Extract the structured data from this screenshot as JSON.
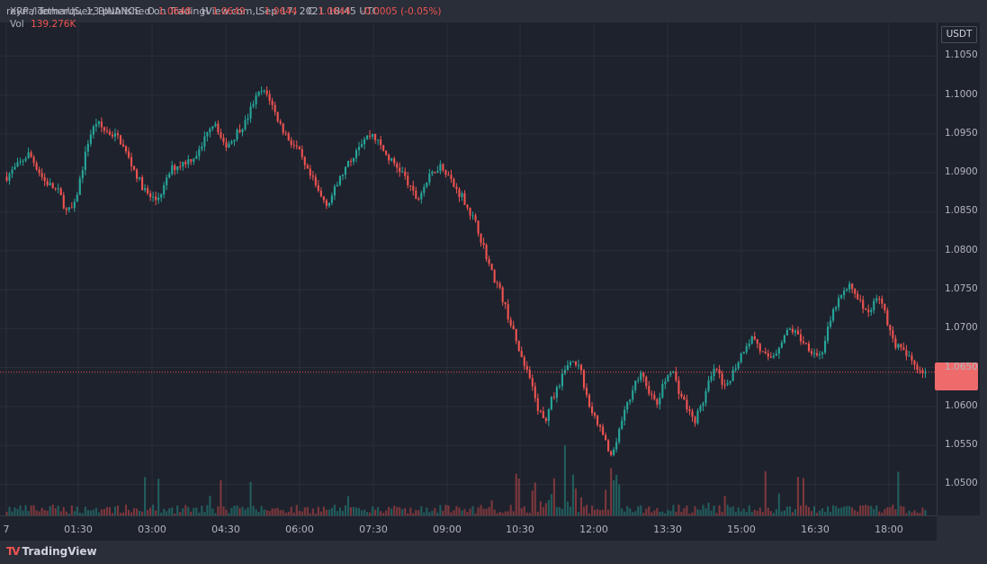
{
  "header": {
    "publish_line": "reynaldomarquez3 published on TradingView.com, Sep 17, 2021 18:45 UTC"
  },
  "legend": {
    "symbol": "XRP / TetherUS, 1, BINANCE",
    "o_label": "O",
    "o_value": "1.0648",
    "h_label": "H",
    "h_value": "1.0649",
    "l_label": "L",
    "l_value": "1.0644",
    "c_label": "C",
    "c_value": "1.0644",
    "change": "-0.0005 (-0.05%)",
    "vol_label": "Vol",
    "vol_value": "139.276K"
  },
  "currency": "USDT",
  "footer": {
    "brand": "TradingView"
  },
  "colors": {
    "up": "#26a69a",
    "down": "#ef5350",
    "background": "#1e222d",
    "grid": "#2a2e39"
  },
  "chart_data": {
    "type": "candlestick",
    "ylim": [
      1.046,
      1.1085
    ],
    "price_ticks": [
      "1.1050",
      "1.1000",
      "1.0950",
      "1.0900",
      "1.0850",
      "1.0800",
      "1.0750",
      "1.0700",
      "1.0650",
      "1.0600",
      "1.0550",
      "1.0500"
    ],
    "time_ticks": [
      "7",
      "01:30",
      "03:00",
      "04:30",
      "06:00",
      "07:30",
      "09:00",
      "10:30",
      "12:00",
      "13:30",
      "15:00",
      "16:30",
      "18:00"
    ],
    "last_price": 1.0644,
    "path": [
      [
        0,
        1.0895
      ],
      [
        1,
        1.0905
      ],
      [
        3,
        1.0925
      ],
      [
        5,
        1.089
      ],
      [
        7,
        1.0875
      ],
      [
        8,
        1.085
      ],
      [
        9,
        1.0855
      ],
      [
        10,
        1.09
      ],
      [
        11,
        1.0945
      ],
      [
        12,
        1.0965
      ],
      [
        13,
        1.0955
      ],
      [
        14,
        1.095
      ],
      [
        15,
        1.0945
      ],
      [
        16,
        1.0925
      ],
      [
        17,
        1.0905
      ],
      [
        18,
        1.0885
      ],
      [
        19,
        1.087
      ],
      [
        20,
        1.0865
      ],
      [
        21,
        1.088
      ],
      [
        22,
        1.0905
      ],
      [
        24,
        1.0915
      ],
      [
        25,
        1.092
      ],
      [
        26,
        1.093
      ],
      [
        27,
        1.096
      ],
      [
        28,
        1.0965
      ],
      [
        29,
        1.0935
      ],
      [
        30,
        1.094
      ],
      [
        31,
        1.0955
      ],
      [
        32,
        1.0965
      ],
      [
        33,
        1.099
      ],
      [
        34,
        1.1005
      ],
      [
        35,
        1.1
      ],
      [
        36,
        1.0975
      ],
      [
        37,
        1.0955
      ],
      [
        38,
        1.094
      ],
      [
        39,
        1.093
      ],
      [
        40,
        1.0905
      ],
      [
        41,
        1.089
      ],
      [
        42,
        1.087
      ],
      [
        43,
        1.086
      ],
      [
        44,
        1.088
      ],
      [
        45,
        1.09
      ],
      [
        46,
        1.0915
      ],
      [
        47,
        1.0935
      ],
      [
        48,
        1.0945
      ],
      [
        49,
        1.095
      ],
      [
        50,
        1.0935
      ],
      [
        51,
        1.092
      ],
      [
        52,
        1.091
      ],
      [
        53,
        1.09
      ],
      [
        54,
        1.088
      ],
      [
        55,
        1.0865
      ],
      [
        56,
        1.0885
      ],
      [
        57,
        1.09
      ],
      [
        58,
        1.091
      ],
      [
        59,
        1.09
      ],
      [
        60,
        1.088
      ],
      [
        61,
        1.087
      ],
      [
        62,
        1.085
      ],
      [
        63,
        1.083
      ],
      [
        64,
        1.08
      ],
      [
        65,
        1.077
      ],
      [
        66,
        1.075
      ],
      [
        67,
        1.072
      ],
      [
        68,
        1.069
      ],
      [
        69,
        1.066
      ],
      [
        70,
        1.0635
      ],
      [
        71,
        1.06
      ],
      [
        72,
        1.058
      ],
      [
        73,
        1.061
      ],
      [
        74,
        1.063
      ],
      [
        75,
        1.065
      ],
      [
        76,
        1.066
      ],
      [
        77,
        1.064
      ],
      [
        78,
        1.06
      ],
      [
        79,
        1.058
      ],
      [
        80,
        1.056
      ],
      [
        81,
        1.053
      ],
      [
        82,
        1.057
      ],
      [
        83,
        1.06
      ],
      [
        84,
        1.063
      ],
      [
        85,
        1.064
      ],
      [
        86,
        1.062
      ],
      [
        87,
        1.06
      ],
      [
        88,
        1.063
      ],
      [
        89,
        1.065
      ],
      [
        90,
        1.062
      ],
      [
        91,
        1.06
      ],
      [
        92,
        1.058
      ],
      [
        93,
        1.06
      ],
      [
        94,
        1.063
      ],
      [
        95,
        1.065
      ],
      [
        96,
        1.062
      ],
      [
        97,
        1.064
      ],
      [
        98,
        1.066
      ],
      [
        99,
        1.068
      ],
      [
        100,
        1.069
      ],
      [
        101,
        1.067
      ],
      [
        102,
        1.066
      ],
      [
        103,
        1.067
      ],
      [
        104,
        1.069
      ],
      [
        105,
        1.07
      ],
      [
        106,
        1.069
      ],
      [
        107,
        1.068
      ],
      [
        108,
        1.067
      ],
      [
        109,
        1.0665
      ],
      [
        110,
        1.07
      ],
      [
        111,
        1.073
      ],
      [
        112,
        1.0745
      ],
      [
        113,
        1.0755
      ],
      [
        114,
        1.074
      ],
      [
        115,
        1.072
      ],
      [
        116,
        1.073
      ],
      [
        117,
        1.0745
      ],
      [
        118,
        1.07
      ],
      [
        119,
        1.068
      ],
      [
        120,
        1.067
      ],
      [
        121,
        1.066
      ],
      [
        122,
        1.065
      ],
      [
        123,
        1.0644
      ]
    ]
  }
}
